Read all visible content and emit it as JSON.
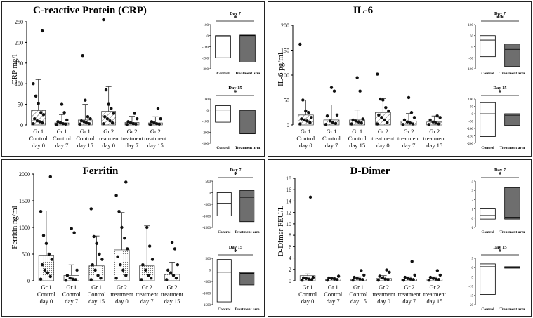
{
  "panels": [
    {
      "title": "C-reactive Protein (CRP)",
      "ylabel": "CRP mg/l",
      "main": {
        "ylim": [
          0,
          250
        ],
        "yticks": [
          0,
          50,
          100,
          150,
          200,
          250
        ],
        "groups": [
          {
            "label": [
              "Gr.1",
              "Control",
              "day 0"
            ],
            "mean": 35,
            "sd": 75,
            "fill": "hatch",
            "points": [
              3,
              5,
              8,
              10,
              15,
              25,
              30,
              52,
              70,
              100,
              228
            ]
          },
          {
            "label": [
              "Gr.1",
              "Control",
              "day 7"
            ],
            "mean": 5,
            "sd": 20,
            "fill": "dots",
            "points": [
              1,
              2,
              3,
              5,
              8,
              12,
              30,
              50
            ]
          },
          {
            "label": [
              "Gr.1",
              "Control",
              "day 15"
            ],
            "mean": 12,
            "sd": 38,
            "fill": "hatch",
            "points": [
              2,
              3,
              5,
              8,
              10,
              15,
              20,
              60,
              168
            ]
          },
          {
            "label": [
              "Gr.2",
              "treatment",
              "day 0"
            ],
            "mean": 33,
            "sd": 60,
            "fill": "hatch",
            "points": [
              3,
              5,
              10,
              15,
              20,
              28,
              40,
              50,
              85,
              255
            ]
          },
          {
            "label": [
              "Gr.2",
              "treatment",
              "day 7"
            ],
            "mean": 6,
            "sd": 15,
            "fill": "dots",
            "points": [
              1,
              2,
              3,
              5,
              8,
              15,
              28
            ]
          },
          {
            "label": [
              "Gr.2",
              "treatment",
              "day 15"
            ],
            "mean": 5,
            "sd": 15,
            "fill": "hatch",
            "points": [
              1,
              2,
              3,
              5,
              8,
              15,
              40
            ]
          }
        ]
      },
      "insets": [
        {
          "title": "Day 7",
          "sig": "*",
          "ylim": [
            -300,
            100
          ],
          "yticks": [
            100,
            0,
            -100,
            -200,
            -300
          ],
          "boxes": [
            {
              "label": "Control",
              "min": -200,
              "max": 0,
              "median": -2,
              "fill": "#ffffff"
            },
            {
              "label": "Treatment arm",
              "min": -240,
              "max": 5,
              "median": 0,
              "fill": "#6e6e6e"
            }
          ]
        },
        {
          "title": "Day 15",
          "sig": "*",
          "ylim": [
            -300,
            100
          ],
          "yticks": [
            100,
            0,
            -100,
            -200,
            -300
          ],
          "boxes": [
            {
              "label": "Control",
              "min": -110,
              "max": 40,
              "median": 0,
              "fill": "#ffffff"
            },
            {
              "label": "Treatment arm",
              "min": -215,
              "max": 0,
              "median": -2,
              "fill": "#6e6e6e"
            }
          ]
        }
      ]
    },
    {
      "title": "IL-6",
      "ylabel": "IL-6 pg/ml",
      "main": {
        "ylim": [
          0,
          200
        ],
        "yticks": [
          0,
          50,
          100,
          150,
          200
        ],
        "groups": [
          {
            "label": [
              "Gr.1",
              "Control",
              "day 0"
            ],
            "mean": 20,
            "sd": 30,
            "fill": "hatch",
            "points": [
              2,
              5,
              8,
              10,
              12,
              15,
              25,
              28,
              50,
              162
            ]
          },
          {
            "label": [
              "Gr.1",
              "Control",
              "day 7"
            ],
            "mean": 10,
            "sd": 30,
            "fill": "hatch",
            "points": [
              1,
              3,
              5,
              8,
              18,
              20,
              68,
              75
            ]
          },
          {
            "label": [
              "Gr.1",
              "Control",
              "day 15"
            ],
            "mean": 10,
            "sd": 20,
            "fill": "hatch",
            "points": [
              2,
              4,
              6,
              8,
              10,
              12,
              68,
              95
            ]
          },
          {
            "label": [
              "Gr.2",
              "treatment",
              "day 0"
            ],
            "mean": 25,
            "sd": 28,
            "fill": "hatch",
            "points": [
              2,
              5,
              10,
              15,
              20,
              28,
              35,
              50,
              52,
              102
            ]
          },
          {
            "label": [
              "Gr.2",
              "treatment",
              "day 7"
            ],
            "mean": 8,
            "sd": 15,
            "fill": "hatch",
            "points": [
              1,
              2,
              4,
              6,
              10,
              15,
              25,
              55
            ]
          },
          {
            "label": [
              "Gr.2",
              "treatment",
              "day 15"
            ],
            "mean": 6,
            "sd": 12,
            "fill": "hatch",
            "points": [
              1,
              2,
              4,
              6,
              10,
              15,
              18
            ]
          }
        ]
      },
      "insets": [
        {
          "title": "Day 7",
          "sig": "**",
          "ylim": [
            -100,
            100
          ],
          "yticks": [
            100,
            50,
            0,
            -50,
            -100
          ],
          "boxes": [
            {
              "label": "Control",
              "min": -45,
              "max": 50,
              "median": 30,
              "fill": "#ffffff"
            },
            {
              "label": "Treatment arm",
              "min": -90,
              "max": 12,
              "median": -12,
              "fill": "#6e6e6e"
            }
          ]
        },
        {
          "title": "Day 15",
          "sig": "*",
          "ylim": [
            -200,
            100
          ],
          "yticks": [
            100,
            50,
            0,
            -50,
            -100,
            -150,
            -200
          ],
          "boxes": [
            {
              "label": "Control",
              "min": -155,
              "max": 75,
              "median": 0,
              "fill": "#ffffff"
            },
            {
              "label": "Treatment arm",
              "min": -80,
              "max": 0,
              "median": -10,
              "fill": "#6e6e6e"
            }
          ]
        }
      ]
    },
    {
      "title": "Ferritin",
      "ylabel": "Ferritin ng/ml",
      "main": {
        "ylim": [
          0,
          2000
        ],
        "yticks": [
          0,
          500,
          1000,
          1500,
          2000
        ],
        "groups": [
          {
            "label": [
              "Gr.1",
              "Control",
              "day 0"
            ],
            "mean": 480,
            "sd": 830,
            "fill": "dots",
            "points": [
              30,
              80,
              150,
              200,
              300,
              400,
              500,
              700,
              850,
              1300,
              1950
            ]
          },
          {
            "label": [
              "Gr.1",
              "Control",
              "day 7"
            ],
            "mean": 100,
            "sd": 200,
            "fill": "dots",
            "points": [
              10,
              20,
              30,
              50,
              100,
              200,
              900,
              980
            ]
          },
          {
            "label": [
              "Gr.1",
              "Control",
              "day 15"
            ],
            "mean": 280,
            "sd": 560,
            "fill": "dots",
            "points": [
              20,
              50,
              100,
              200,
              300,
              400,
              500,
              700,
              830,
              1350
            ]
          },
          {
            "label": [
              "Gr.2",
              "treatment",
              "day 0"
            ],
            "mean": 580,
            "sd": 700,
            "fill": "dots",
            "points": [
              50,
              100,
              200,
              300,
              450,
              600,
              800,
              1000,
              1300,
              1600,
              1850
            ]
          },
          {
            "label": [
              "Gr.2",
              "treatment",
              "day 7"
            ],
            "mean": 280,
            "sd": 750,
            "fill": "dots",
            "points": [
              20,
              50,
              100,
              200,
              300,
              400,
              650,
              1000
            ]
          },
          {
            "label": [
              "Gr.2",
              "treatment",
              "day 15"
            ],
            "mean": 120,
            "sd": 230,
            "fill": "dots",
            "points": [
              20,
              50,
              100,
              150,
              200,
              300,
              600,
              720
            ]
          }
        ]
      },
      "insets": [
        {
          "title": "Day 7",
          "sig": "*",
          "ylim": [
            -1500,
            500
          ],
          "yticks": [
            500,
            0,
            -500,
            -1000,
            -1500
          ],
          "boxes": [
            {
              "label": "Control",
              "min": -1000,
              "max": 0,
              "median": -450,
              "fill": "#ffffff"
            },
            {
              "label": "Treatment arm",
              "min": -1250,
              "max": 100,
              "median": -200,
              "fill": "#6e6e6e"
            }
          ]
        },
        {
          "title": "Day 15",
          "sig": "*",
          "ylim": [
            -1500,
            500
          ],
          "yticks": [
            500,
            0,
            -500,
            -1000,
            -1500
          ],
          "boxes": [
            {
              "label": "Control",
              "min": -1380,
              "max": 450,
              "median": -100,
              "fill": "#ffffff"
            },
            {
              "label": "Treatment arm",
              "min": -650,
              "max": -100,
              "median": -150,
              "fill": "#6e6e6e"
            }
          ]
        }
      ]
    },
    {
      "title": "D-Dimer",
      "ylabel": "D-Dimer FEU/L",
      "main": {
        "ylim": [
          0,
          18
        ],
        "yticks": [
          0,
          2,
          4,
          6,
          8,
          10,
          12,
          14,
          16,
          18
        ],
        "groups": [
          {
            "label": [
              "Gr.1",
              "Control",
              "day 0"
            ],
            "mean": 0.9,
            "sd": 0.3,
            "fill": "dots",
            "points": [
              0.1,
              0.2,
              0.3,
              0.4,
              0.5,
              0.6,
              14.7
            ]
          },
          {
            "label": [
              "Gr.1",
              "Control",
              "day 7"
            ],
            "mean": 0.3,
            "sd": 0.3,
            "fill": "dots",
            "points": [
              0.1,
              0.2,
              0.3,
              0.4,
              0.5,
              0.8
            ]
          },
          {
            "label": [
              "Gr.1",
              "Control",
              "day 15"
            ],
            "mean": 0.3,
            "sd": 0.4,
            "fill": "dots",
            "points": [
              0.1,
              0.2,
              0.3,
              0.4,
              0.6,
              1.0,
              1.8
            ]
          },
          {
            "label": [
              "Gr.2",
              "treatment",
              "day 0"
            ],
            "mean": 0.4,
            "sd": 0.5,
            "fill": "dots",
            "points": [
              0.1,
              0.2,
              0.3,
              0.5,
              0.8,
              1.5,
              1.9
            ]
          },
          {
            "label": [
              "Gr.2",
              "treatment",
              "day 7"
            ],
            "mean": 0.3,
            "sd": 0.4,
            "fill": "dots",
            "points": [
              0.1,
              0.2,
              0.3,
              0.4,
              0.6,
              1.0,
              3.4
            ]
          },
          {
            "label": [
              "Gr.2",
              "treatment",
              "day 15"
            ],
            "mean": 0.3,
            "sd": 0.4,
            "fill": "dots",
            "points": [
              0.1,
              0.2,
              0.3,
              0.4,
              0.6,
              1.0,
              1.8
            ]
          }
        ]
      },
      "insets": [
        {
          "title": "Day 7",
          "sig": "*",
          "ylim": [
            -1,
            4
          ],
          "yticks": [
            4,
            3,
            2,
            1,
            0,
            -1
          ],
          "boxes": [
            {
              "label": "Control",
              "min": -0.1,
              "max": 1.0,
              "median": 0.3,
              "fill": "#ffffff"
            },
            {
              "label": "Treatment arm",
              "min": -0.1,
              "max": 3.3,
              "median": 0.1,
              "fill": "#6e6e6e"
            }
          ]
        },
        {
          "title": "Day 15",
          "sig": "*",
          "ylim": [
            -20,
            5
          ],
          "yticks": [
            5,
            0,
            -5,
            -10,
            -15,
            -20
          ],
          "boxes": [
            {
              "label": "Control",
              "min": -14.5,
              "max": 2,
              "median": 0.5,
              "fill": "#ffffff"
            },
            {
              "label": "Treatment arm",
              "min": -0.3,
              "max": 0.5,
              "median": 0.1,
              "fill": "#6e6e6e"
            }
          ]
        }
      ]
    }
  ],
  "chart_data": [
    {
      "type": "bar",
      "title": "C-reactive Protein (CRP)",
      "ylabel": "CRP mg/l",
      "categories": [
        "Gr.1 Control day 0",
        "Gr.1 Control day 7",
        "Gr.1 Control day 15",
        "Gr.2 treatment day 0",
        "Gr.2 treatment day 7",
        "Gr.2 treatment day 15"
      ],
      "values": [
        35,
        5,
        12,
        33,
        6,
        5
      ],
      "ylim": [
        0,
        250
      ]
    },
    {
      "type": "bar",
      "title": "IL-6",
      "ylabel": "IL-6 pg/ml",
      "categories": [
        "Gr.1 Control day 0",
        "Gr.1 Control day 7",
        "Gr.1 Control day 15",
        "Gr.2 treatment day 0",
        "Gr.2 treatment day 7",
        "Gr.2 treatment day 15"
      ],
      "values": [
        20,
        10,
        10,
        25,
        8,
        6
      ],
      "ylim": [
        0,
        200
      ]
    },
    {
      "type": "bar",
      "title": "Ferritin",
      "ylabel": "Ferritin ng/ml",
      "categories": [
        "Gr.1 Control day 0",
        "Gr.1 Control day 7",
        "Gr.1 Control day 15",
        "Gr.2 treatment day 0",
        "Gr.2 treatment day 7",
        "Gr.2 treatment day 15"
      ],
      "values": [
        480,
        100,
        280,
        580,
        280,
        120
      ],
      "ylim": [
        0,
        2000
      ]
    },
    {
      "type": "bar",
      "title": "D-Dimer",
      "ylabel": "D-Dimer FEU/L",
      "categories": [
        "Gr.1 Control day 0",
        "Gr.1 Control day 7",
        "Gr.1 Control day 15",
        "Gr.2 treatment day 0",
        "Gr.2 treatment day 7",
        "Gr.2 treatment day 15"
      ],
      "values": [
        0.9,
        0.3,
        0.3,
        0.4,
        0.3,
        0.3
      ],
      "ylim": [
        0,
        18
      ]
    }
  ]
}
